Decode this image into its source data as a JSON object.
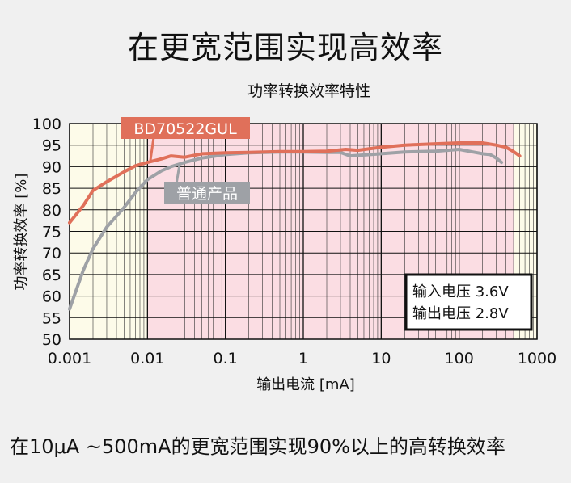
{
  "headline": "在更宽范围实现高效率",
  "caption": "在10μA ~500mA的更宽范围实现90%以上的高转换效率",
  "chart_data": {
    "type": "line",
    "title": "功率转换效率特性",
    "xlabel": "输出电流 [mA]",
    "ylabel": "功率转换效率 [%]",
    "x_scale": "log",
    "xlim": [
      0.001,
      1000
    ],
    "ylim": [
      50,
      100
    ],
    "x_ticks": [
      "0.001",
      "0.01",
      "0.1",
      "1",
      "10",
      "100",
      "1000"
    ],
    "y_ticks": [
      "50",
      "55",
      "60",
      "65",
      "70",
      "75",
      "80",
      "85",
      "90",
      "95",
      "100"
    ],
    "grid": true,
    "highlight_band": {
      "from": 0.01,
      "to": 500,
      "color": "#fbdde3"
    },
    "plot_background": "#fdfbe9",
    "series": [
      {
        "name": "BD70522GUL",
        "color": "#e0705a",
        "x": [
          0.001,
          0.0015,
          0.002,
          0.003,
          0.005,
          0.007,
          0.01,
          0.015,
          0.02,
          0.03,
          0.05,
          0.1,
          0.2,
          0.5,
          1,
          2,
          3.5,
          5,
          10,
          20,
          50,
          100,
          200,
          300,
          400,
          500,
          600
        ],
        "values": [
          77,
          81,
          84.5,
          86.5,
          88.8,
          90.2,
          91,
          91.8,
          92.5,
          92.2,
          93,
          93.2,
          93.3,
          93.5,
          93.5,
          93.6,
          94,
          93.8,
          94.5,
          95,
          95.3,
          95.5,
          95.5,
          95,
          94.5,
          93.5,
          92.5
        ]
      },
      {
        "name": "普通产品",
        "color": "#9ea1a6",
        "x": [
          0.001,
          0.0015,
          0.002,
          0.003,
          0.005,
          0.007,
          0.01,
          0.015,
          0.02,
          0.03,
          0.05,
          0.1,
          0.2,
          0.5,
          1,
          2,
          3,
          4,
          10,
          20,
          50,
          100,
          150,
          200,
          250,
          300,
          350
        ],
        "values": [
          57,
          66,
          71,
          76,
          80.5,
          84,
          87,
          89,
          90,
          91,
          92,
          92.8,
          93.2,
          93.4,
          93.4,
          93.3,
          93.3,
          92.5,
          93,
          93.4,
          93.6,
          94,
          93.4,
          93,
          92.8,
          92,
          91
        ]
      }
    ],
    "annotation": [
      "输入电压 3.6V",
      "输出电压 2.8V"
    ]
  }
}
